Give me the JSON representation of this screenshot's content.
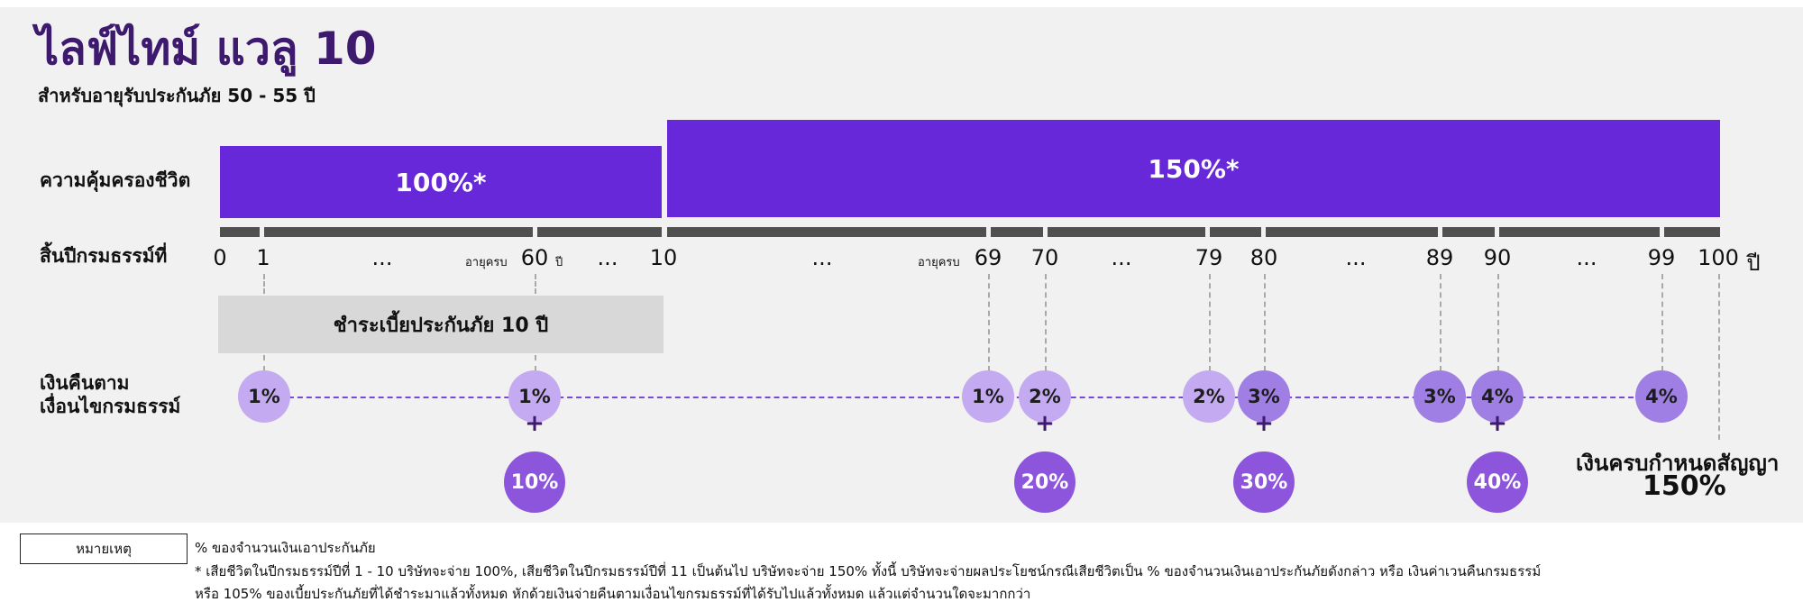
{
  "title": "ไลฟ์ไทม์ แวลู 10",
  "subtitle": "สำหรับอายุรับประกันภัย 50 - 55 ปี",
  "row_labels": {
    "coverage": "ความคุ้มครองชีวิต",
    "policy_year_end": "สิ้นปีกรมธรรม์ที่",
    "cashback_line1": "เงินคืนตาม",
    "cashback_line2": "เงื่อนไขกรมธรรม์"
  },
  "coverage": {
    "years_1_10": "100%*",
    "years_11_plus": "150%*"
  },
  "ticks": {
    "t0": "0",
    "t1": "1",
    "d1": "...",
    "t60": "60",
    "d2": "...",
    "t10": "10",
    "d3": "...",
    "t69": "69",
    "t70": "70",
    "d4": "...",
    "t79": "79",
    "t80": "80",
    "d5": "...",
    "t89": "89",
    "t90": "90",
    "d6": "...",
    "t99": "99",
    "t100": "100",
    "unit_year": "ปี",
    "age_prefix": "อายุครบ",
    "age_suffix": "ปี"
  },
  "premium_period": "ชำระเบี้ยประกันภัย 10 ปี",
  "cashback": {
    "y1": "1%",
    "y60": "1%",
    "y69": "1%",
    "y70": "2%",
    "y79": "2%",
    "y80": "3%",
    "y89": "3%",
    "y90": "4%",
    "y99": "4%",
    "plus": "+",
    "bonus70": "20%",
    "bonus60": "10%",
    "bonus80": "30%",
    "bonus90": "40%"
  },
  "maturity": {
    "label": "เงินครบกำหนดสัญญา",
    "value": "150%"
  },
  "notes": {
    "box_label": "หมายเหตุ",
    "line1": "% ของจำนวนเงินเอาประกันภัย",
    "line2": "* เสียชีวิตในปีกรมธรรม์ปีที่ 1 - 10 บริษัทจะจ่าย 100%, เสียชีวิตในปีกรมธรรม์ปีที่ 11 เป็นต้นไป บริษัทจะจ่าย 150% ทั้งนี้ บริษัทจะจ่ายผลประโยชน์กรณีเสียชีวิตเป็น % ของจำนวนเงินเอาประกันภัยดังกล่าว หรือ เงินค่าเวนคืนกรมธรรม์",
    "line3": "หรือ 105% ของเบี้ยประกันภัยที่ได้ชำระมาแล้วทั้งหมด หักด้วยเงินจ่ายคืนตามเงื่อนไขกรมธรรม์ที่ได้รับไปแล้วทั้งหมด แล้วแต่จำนวนใดจะมากกว่า"
  },
  "colors": {
    "brand_purple": "#3d1a6e",
    "coverage_purple": "#6628d8",
    "light_circle": "#c4aaf0",
    "mid_circle": "#9f7fe4",
    "bonus_circle": "#8c55dc"
  }
}
